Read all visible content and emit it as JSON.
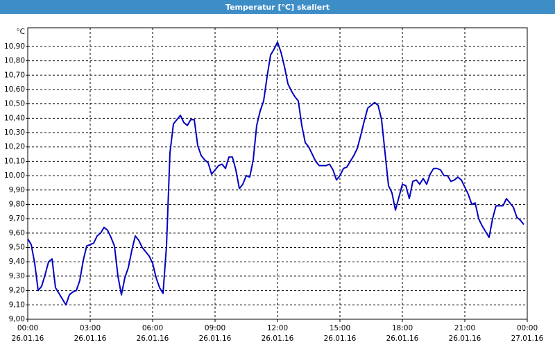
{
  "chart_data": {
    "type": "line",
    "title": "Temperatur [°C] skaliert",
    "y_label": "°C",
    "xlim": [
      0,
      1440
    ],
    "xticks": [
      {
        "value": 0,
        "label": "00:00 26.01.16"
      },
      {
        "value": 180,
        "label": "03:00 26.01.16"
      },
      {
        "value": 360,
        "label": "06:00 26.01.16"
      },
      {
        "value": 540,
        "label": "09:00 26.01.16"
      },
      {
        "value": 720,
        "label": "12:00 26.01.16"
      },
      {
        "value": 900,
        "label": "15:00 26.01.16"
      },
      {
        "value": 1080,
        "label": "18:00 26.01.16"
      },
      {
        "value": 1260,
        "label": "21:00 26.01.16"
      },
      {
        "value": 1440,
        "label": "00:00 27.01.16"
      }
    ],
    "ylim": [
      9.0,
      11.03
    ],
    "yticks": [
      {
        "value": 9.0,
        "label": "9,00"
      },
      {
        "value": 9.1,
        "label": "9,10"
      },
      {
        "value": 9.2,
        "label": "9,20"
      },
      {
        "value": 9.3,
        "label": "9,30"
      },
      {
        "value": 9.4,
        "label": "9,40"
      },
      {
        "value": 9.5,
        "label": "9,50"
      },
      {
        "value": 9.6,
        "label": "9,60"
      },
      {
        "value": 9.7,
        "label": "9,70"
      },
      {
        "value": 9.8,
        "label": "9,80"
      },
      {
        "value": 9.9,
        "label": "9,90"
      },
      {
        "value": 10.0,
        "label": "10,00"
      },
      {
        "value": 10.1,
        "label": "10,10"
      },
      {
        "value": 10.2,
        "label": "10,20"
      },
      {
        "value": 10.3,
        "label": "10,30"
      },
      {
        "value": 10.4,
        "label": "10,40"
      },
      {
        "value": 10.5,
        "label": "10,50"
      },
      {
        "value": 10.6,
        "label": "10,60"
      },
      {
        "value": 10.7,
        "label": "10,70"
      },
      {
        "value": 10.8,
        "label": "10,80"
      },
      {
        "value": 10.9,
        "label": "10,90"
      }
    ],
    "grid": true,
    "x": [
      0,
      10,
      20,
      30,
      40,
      50,
      60,
      70,
      80,
      90,
      100,
      110,
      120,
      130,
      140,
      150,
      160,
      170,
      180,
      190,
      200,
      210,
      220,
      230,
      240,
      250,
      260,
      270,
      280,
      290,
      300,
      310,
      320,
      330,
      340,
      350,
      360,
      370,
      380,
      390,
      400,
      410,
      420,
      430,
      440,
      450,
      460,
      470,
      480,
      490,
      500,
      510,
      520,
      530,
      540,
      550,
      560,
      570,
      580,
      590,
      600,
      610,
      620,
      630,
      640,
      650,
      660,
      670,
      680,
      690,
      700,
      710,
      720,
      730,
      740,
      750,
      760,
      770,
      780,
      790,
      800,
      810,
      820,
      830,
      840,
      850,
      860,
      870,
      880,
      890,
      900,
      910,
      920,
      930,
      940,
      950,
      960,
      970,
      980,
      990,
      1000,
      1010,
      1020,
      1030,
      1040,
      1050,
      1060,
      1070,
      1080,
      1090,
      1100,
      1110,
      1120,
      1130,
      1140,
      1150,
      1160,
      1170,
      1180,
      1190,
      1200,
      1210,
      1220,
      1230,
      1240,
      1250,
      1260,
      1270,
      1280,
      1290,
      1300,
      1310,
      1320,
      1330,
      1340,
      1350,
      1360,
      1370,
      1380,
      1390,
      1400,
      1410,
      1420,
      1430
    ],
    "series": [
      {
        "color": "#0000c0",
        "values": [
          9.56,
          9.52,
          9.39,
          9.2,
          9.23,
          9.31,
          9.4,
          9.42,
          9.22,
          9.18,
          9.14,
          9.1,
          9.17,
          9.19,
          9.2,
          9.27,
          9.41,
          9.51,
          9.52,
          9.53,
          9.58,
          9.6,
          9.64,
          9.62,
          9.57,
          9.51,
          9.3,
          9.17,
          9.29,
          9.36,
          9.48,
          9.58,
          9.55,
          9.5,
          9.47,
          9.44,
          9.39,
          9.29,
          9.22,
          9.18,
          9.51,
          10.16,
          10.36,
          10.39,
          10.42,
          10.37,
          10.35,
          10.39,
          10.39,
          10.21,
          10.14,
          10.11,
          10.09,
          10.01,
          10.04,
          10.07,
          10.08,
          10.05,
          10.13,
          10.13,
          10.04,
          9.91,
          9.94,
          10.0,
          9.99,
          10.11,
          10.35,
          10.45,
          10.52,
          10.69,
          10.84,
          10.88,
          10.93,
          10.86,
          10.76,
          10.64,
          10.59,
          10.55,
          10.52,
          10.35,
          10.23,
          10.2,
          10.15,
          10.1,
          10.07,
          10.07,
          10.07,
          10.08,
          10.04,
          9.97,
          10.0,
          10.05,
          10.06,
          10.1,
          10.14,
          10.19,
          10.28,
          10.38,
          10.47,
          10.49,
          10.51,
          10.49,
          10.39,
          10.16,
          9.93,
          9.88,
          9.76,
          9.85,
          9.94,
          9.93,
          9.84,
          9.96,
          9.97,
          9.94,
          9.98,
          9.94,
          10.01,
          10.05,
          10.05,
          10.04,
          10.0,
          10.0,
          9.96,
          9.97,
          9.99,
          9.97,
          9.92,
          9.87,
          9.8,
          9.81,
          9.7,
          9.65,
          9.61,
          9.57,
          9.7,
          9.79,
          9.79,
          9.79,
          9.84,
          9.81,
          9.78,
          9.71,
          9.69,
          9.66
        ]
      }
    ]
  }
}
